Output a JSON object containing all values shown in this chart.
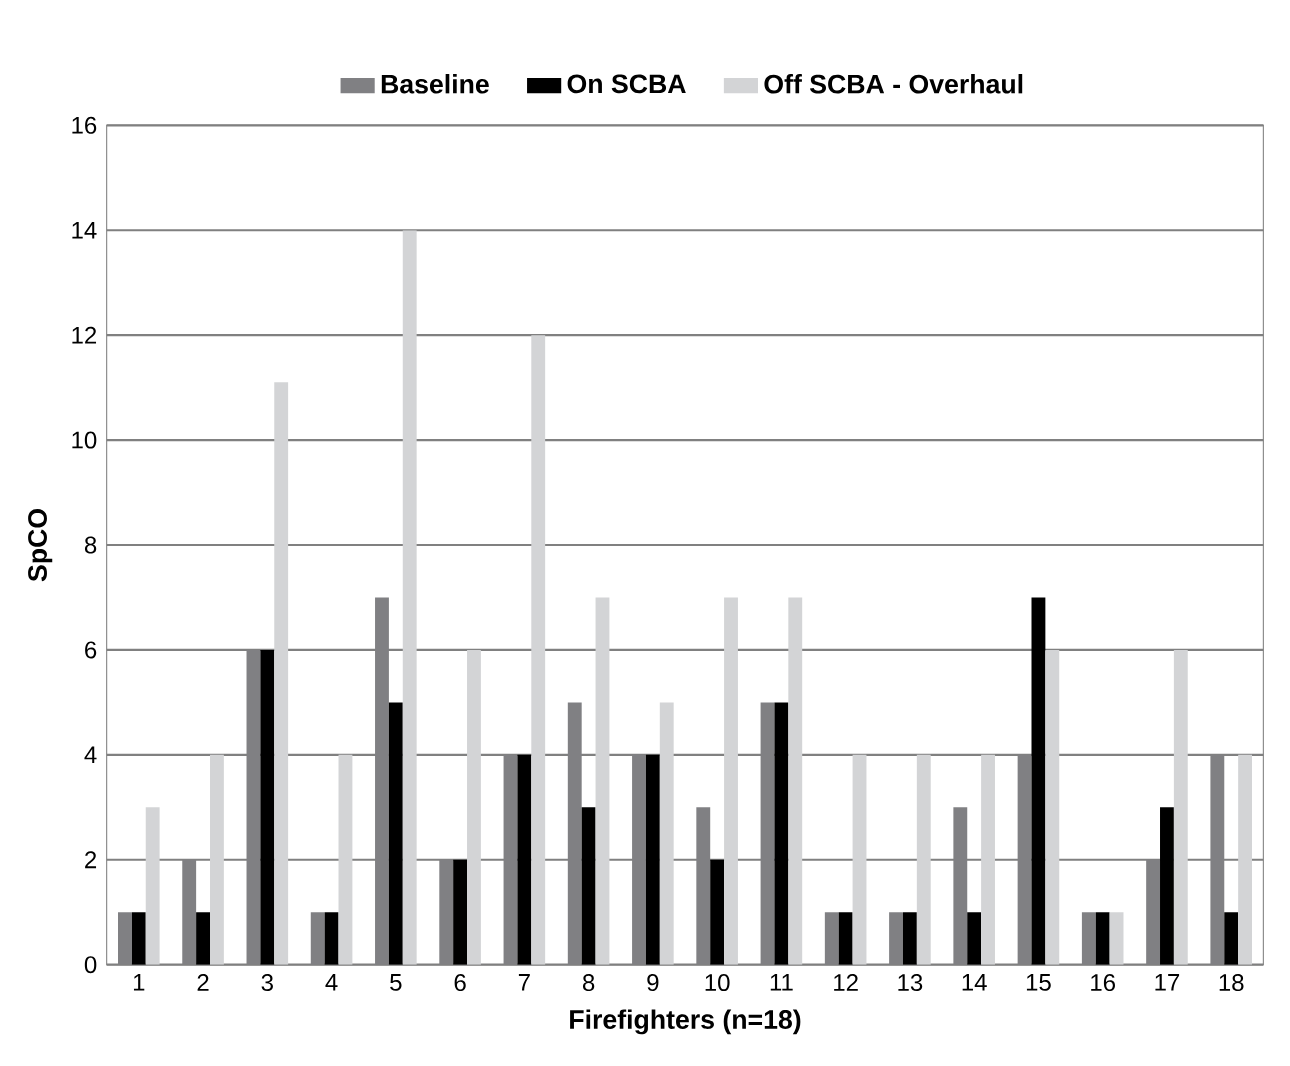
{
  "chart_data": {
    "type": "bar",
    "xlabel": "Firefighters (n=18)",
    "ylabel": "SpCO",
    "categories": [
      "1",
      "2",
      "3",
      "4",
      "5",
      "6",
      "7",
      "8",
      "9",
      "10",
      "11",
      "12",
      "13",
      "14",
      "15",
      "16",
      "17",
      "18"
    ],
    "series": [
      {
        "name": "Baseline",
        "color": "#808083",
        "values": [
          1,
          2,
          6,
          1,
          7,
          2,
          4,
          5,
          4,
          3,
          5,
          1,
          1,
          3,
          4,
          1,
          2,
          4
        ]
      },
      {
        "name": "On SCBA",
        "color": "#000000",
        "values": [
          1,
          1,
          6,
          1,
          5,
          2,
          4,
          3,
          4,
          2,
          5,
          1,
          1,
          1,
          7,
          1,
          3,
          1
        ]
      },
      {
        "name": "Off SCBA - Overhaul",
        "color": "#d3d4d6",
        "values": [
          3,
          4,
          11.1,
          4,
          14,
          6,
          12,
          7,
          5,
          7,
          7,
          4,
          4,
          4,
          6,
          1,
          6,
          4
        ]
      }
    ],
    "ylim": [
      0,
      16
    ],
    "yticks": [
      0,
      2,
      4,
      6,
      8,
      10,
      12,
      14,
      16
    ],
    "grid": "y",
    "legend": "top"
  }
}
